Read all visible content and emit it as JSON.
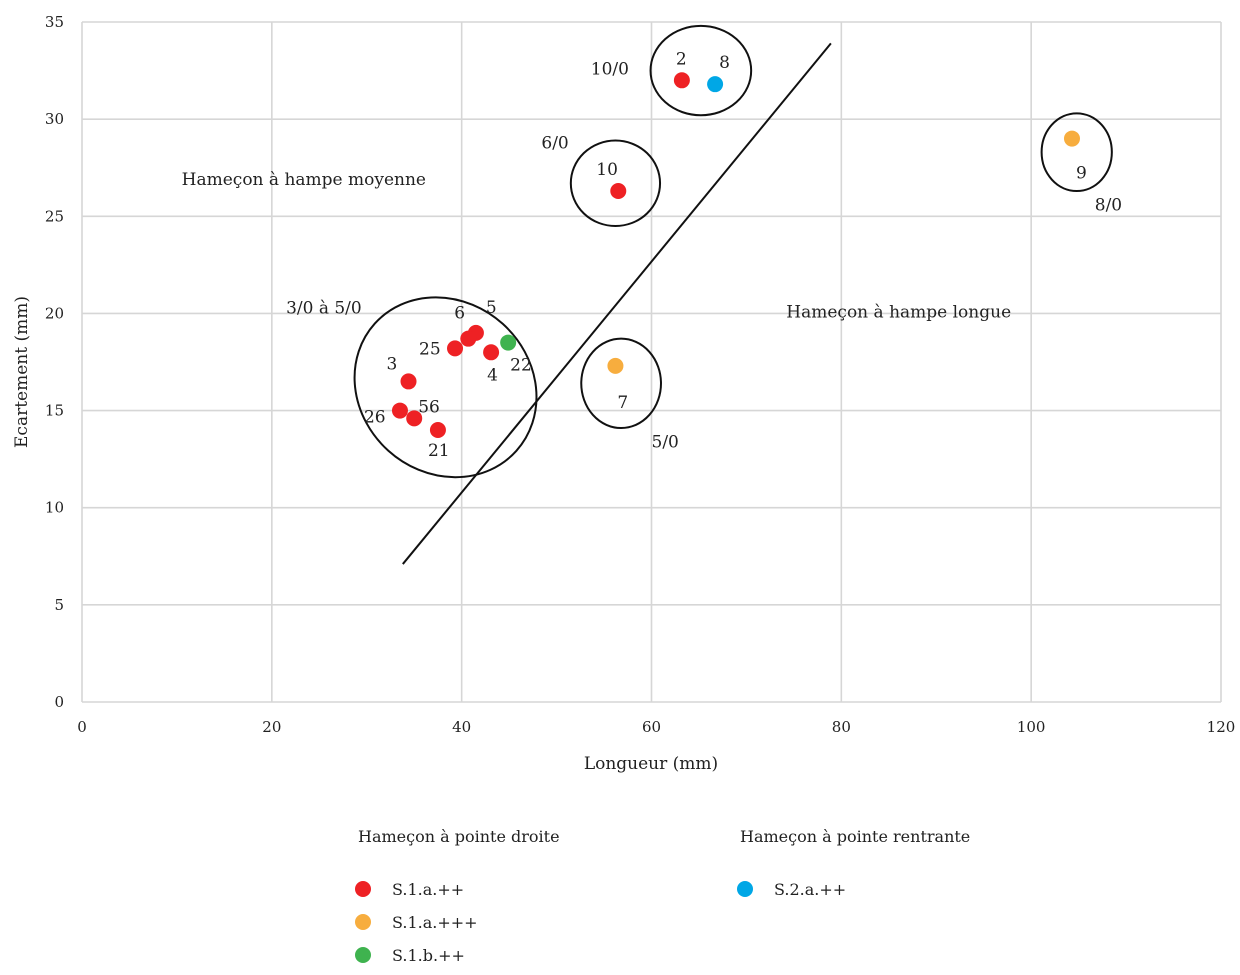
{
  "chart_data": {
    "type": "scatter",
    "xlabel": "Longueur (mm)",
    "ylabel": "Ecartement (mm)",
    "xlim": [
      0,
      120
    ],
    "ylim": [
      0,
      35
    ],
    "xticks": [
      "0",
      "20",
      "40",
      "60",
      "80",
      "100",
      "120"
    ],
    "yticks": [
      "0",
      "5",
      "10",
      "15",
      "20",
      "25",
      "30",
      "35"
    ],
    "grid": true,
    "legend_placement": "bottom",
    "legend_groups": [
      {
        "title": "Hameçon à pointe droite",
        "entries": [
          {
            "series": "S.1.a.++",
            "color": "#ee2124"
          },
          {
            "series": "S.1.a.+++",
            "color": "#f7ad3e"
          },
          {
            "series": "S.1.b.++",
            "color": "#3fb34f"
          }
        ]
      },
      {
        "title": "Hameçon à pointe rentrante",
        "entries": [
          {
            "series": "S.2.a.++",
            "color": "#00a7e6"
          }
        ]
      }
    ],
    "series": [
      {
        "name": "S.1.a.++",
        "color": "#ee2124",
        "points": [
          {
            "x": 63.2,
            "y": 32.0,
            "label": "2"
          },
          {
            "x": 56.5,
            "y": 26.3,
            "label": "10"
          },
          {
            "x": 41.5,
            "y": 19.0,
            "label": "5"
          },
          {
            "x": 40.7,
            "y": 18.7,
            "label": "6"
          },
          {
            "x": 39.3,
            "y": 18.2,
            "label": "25"
          },
          {
            "x": 43.1,
            "y": 18.0,
            "label": "4"
          },
          {
            "x": 34.4,
            "y": 16.5,
            "label": "3"
          },
          {
            "x": 33.5,
            "y": 15.0,
            "label": "26"
          },
          {
            "x": 35.0,
            "y": 14.6,
            "label": "56"
          },
          {
            "x": 37.5,
            "y": 14.0,
            "label": "21"
          }
        ]
      },
      {
        "name": "S.1.a.+++",
        "color": "#f7ad3e",
        "points": [
          {
            "x": 104.3,
            "y": 29.0,
            "label": "9"
          },
          {
            "x": 56.2,
            "y": 17.3,
            "label": "7"
          }
        ]
      },
      {
        "name": "S.1.b.++",
        "color": "#3fb34f",
        "points": [
          {
            "x": 44.9,
            "y": 18.5,
            "label": "22"
          }
        ]
      },
      {
        "name": "S.2.a.++",
        "color": "#00a7e6",
        "points": [
          {
            "x": 66.7,
            "y": 31.8,
            "label": "8"
          }
        ]
      }
    ],
    "divider_line": {
      "from": {
        "x": 33.8,
        "y": 7.1
      },
      "to": {
        "x": 78.9,
        "y": 33.9
      }
    },
    "groups": [
      {
        "label": "10/0",
        "cx": 65.2,
        "cy": 32.5,
        "rx": 5.3,
        "ry": 2.3,
        "rot": 0
      },
      {
        "label": "6/0",
        "cx": 56.2,
        "cy": 26.7,
        "rx": 4.7,
        "ry": 2.2,
        "rot": 0
      },
      {
        "label": "8/0",
        "cx": 104.8,
        "cy": 28.3,
        "rx": 3.7,
        "ry": 2.0,
        "rot": 0
      },
      {
        "label": "5/0",
        "cx": 56.8,
        "cy": 16.4,
        "rx": 4.2,
        "ry": 2.3,
        "rot": 0
      },
      {
        "label": "3/0 à 5/0",
        "cx": 38.3,
        "cy": 16.2,
        "rx": 9.0,
        "ry": 4.9,
        "rot": -48
      }
    ],
    "annotations": [
      {
        "text": "Hameçon à hampe moyenne",
        "x": 10.5,
        "y": 26.6
      },
      {
        "text": "Hameçon à hampe longue",
        "x": 74.2,
        "y": 19.8
      },
      {
        "text": "10/0",
        "x": 53.6,
        "y": 32.3
      },
      {
        "text": "6/0",
        "x": 48.4,
        "y": 28.5
      },
      {
        "text": "8/0",
        "x": 106.7,
        "y": 25.3
      },
      {
        "text": "5/0",
        "x": 60.0,
        "y": 13.1
      },
      {
        "text": "3/0 à 5/0",
        "x": 21.5,
        "y": 20.0
      }
    ]
  }
}
